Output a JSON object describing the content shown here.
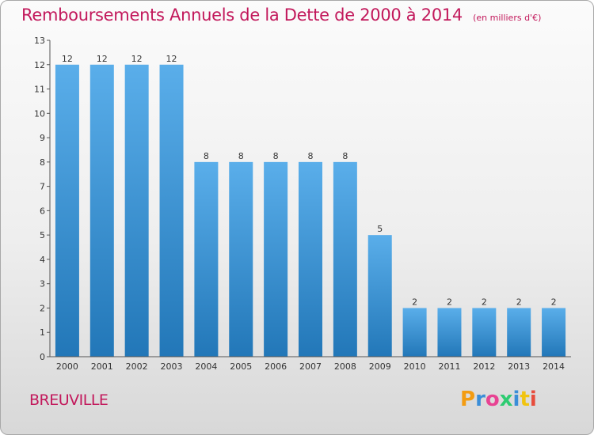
{
  "title": "Remboursements Annuels de la Dette de 2000 à 2014",
  "unit": "(en milliers d'€)",
  "commune": "BREUVILLE",
  "logo": {
    "text": "Proxiti",
    "colors": [
      "#f39c12",
      "#3b8ed8",
      "#e84393",
      "#2ecc71",
      "#3b8ed8",
      "#f1c40f",
      "#e74c3c"
    ]
  },
  "colors": {
    "accent": "#c2185b",
    "bar_top": "#5aaeea",
    "bar_bottom": "#2277b8"
  },
  "chart_data": {
    "type": "bar",
    "categories": [
      "2000",
      "2001",
      "2002",
      "2003",
      "2004",
      "2005",
      "2006",
      "2007",
      "2008",
      "2009",
      "2010",
      "2011",
      "2012",
      "2013",
      "2014"
    ],
    "values": [
      12,
      12,
      12,
      12,
      8,
      8,
      8,
      8,
      8,
      5,
      2,
      2,
      2,
      2,
      2
    ],
    "ylim": [
      0,
      13
    ],
    "yticks": [
      0,
      1,
      2,
      3,
      4,
      5,
      6,
      7,
      8,
      9,
      10,
      11,
      12,
      13
    ],
    "grid": false,
    "xlabel": "",
    "ylabel": ""
  }
}
